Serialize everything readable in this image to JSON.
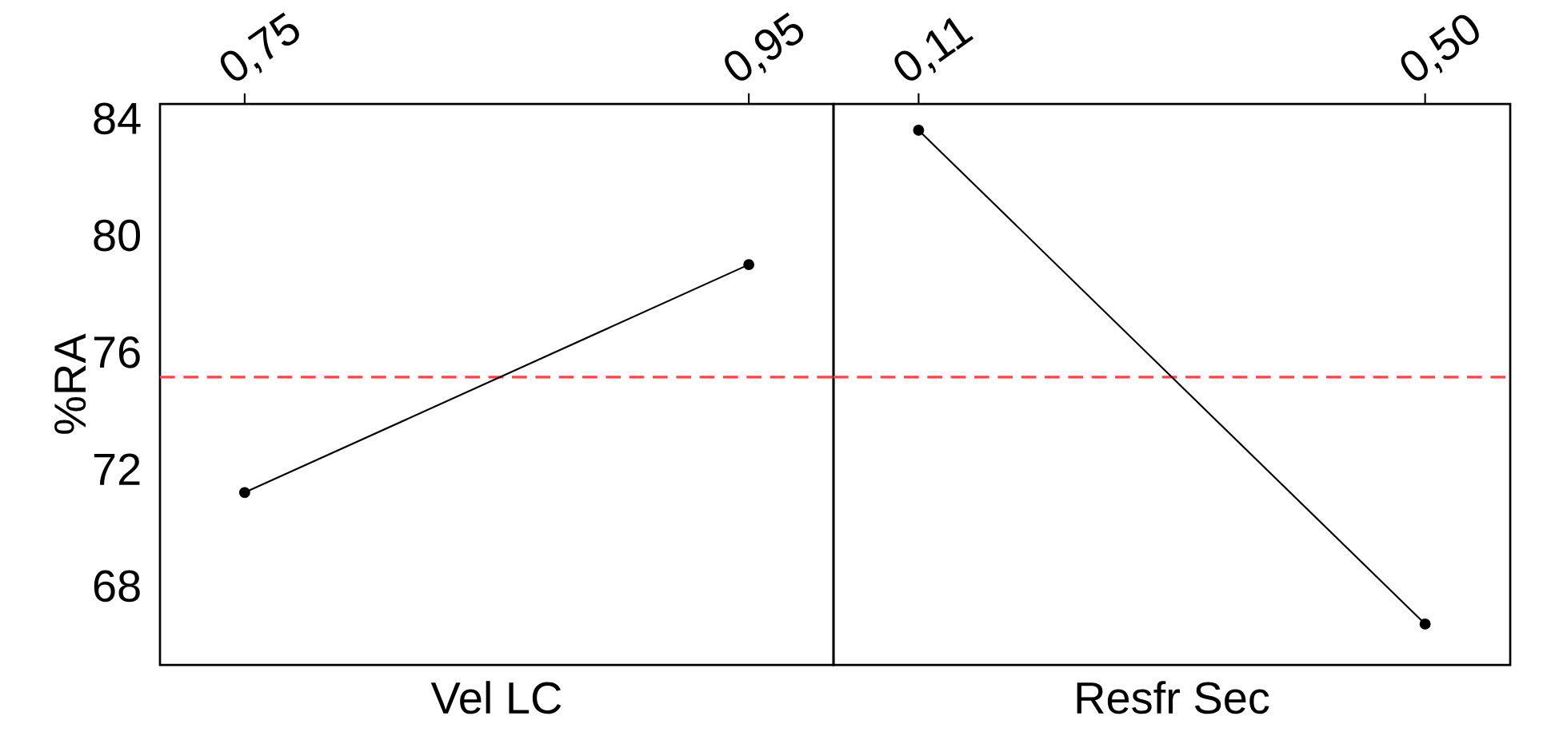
{
  "chart_data": [
    {
      "type": "line",
      "categories": [
        "0,75",
        "0,95"
      ],
      "xlabel": "Vel LC",
      "ylabel": "%RA",
      "series": [
        {
          "color": "#000000",
          "values": [
            71.2,
            79.0
          ]
        }
      ],
      "marker": "circle",
      "ylim": [
        65.3,
        84.5
      ],
      "yticks": [
        68,
        72,
        76,
        80,
        84
      ],
      "ref_lines": [
        {
          "axis": "y",
          "value": 75.15,
          "color": "#ff4444",
          "line_style": "dashed"
        }
      ]
    },
    {
      "type": "line",
      "categories": [
        "0,11",
        "0,50"
      ],
      "xlabel": "Resfr Sec",
      "series": [
        {
          "color": "#000000",
          "values": [
            83.6,
            66.7
          ]
        }
      ],
      "marker": "circle",
      "ylim": [
        65.3,
        84.5
      ],
      "tick_labels": "x",
      "ref_lines": [
        {
          "axis": "y",
          "value": 75.15,
          "color": "#ff4444",
          "line_style": "dashed"
        }
      ]
    }
  ]
}
